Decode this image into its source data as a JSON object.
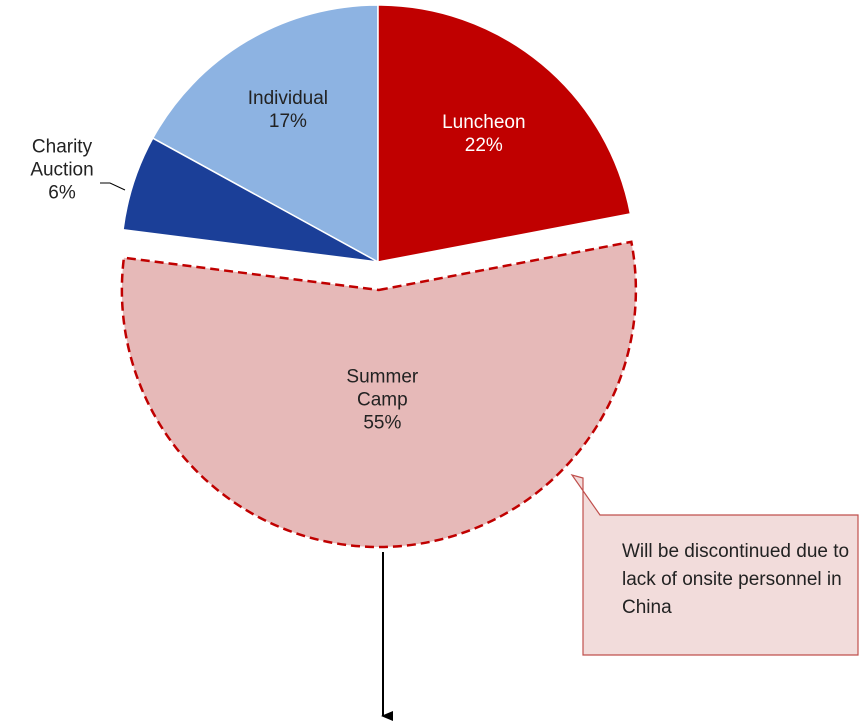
{
  "chart_data": {
    "type": "pie",
    "categories": [
      "Luncheon",
      "Summer Camp",
      "Charity Auction",
      "Individual"
    ],
    "values": [
      22,
      55,
      6,
      17
    ],
    "value_labels": [
      "22%",
      "55%",
      "6%",
      "17%"
    ],
    "colors": [
      "#c00000",
      "#e6b9b8",
      "#1b3f98",
      "#8db3e2"
    ],
    "annotation": "Will be discontinued due to lack of onsite personnel in China"
  }
}
